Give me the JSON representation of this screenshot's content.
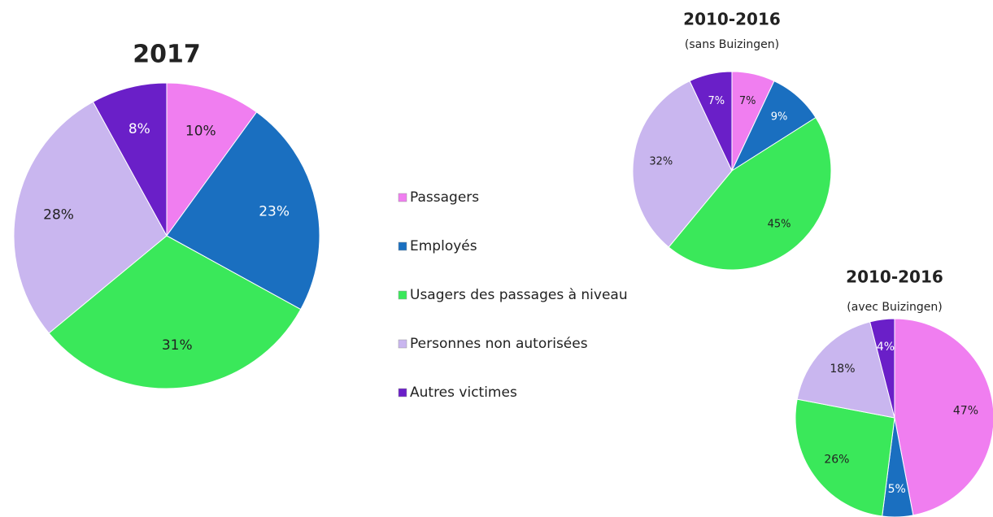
{
  "chart_data": [
    {
      "type": "pie",
      "title": "2017",
      "categories": [
        "Passagers",
        "Employés",
        "Usagers des passages à niveau",
        "Personnes non autorisées",
        "Autres victimes"
      ],
      "colors": [
        "#f07ef0",
        "#1a6fc0",
        "#3ae85a",
        "#c9b6ef",
        "#6a1fc8"
      ],
      "values": [
        10,
        23,
        31,
        28,
        8
      ],
      "value_labels": [
        "10%",
        "23%",
        "31%",
        "28%",
        "8%"
      ]
    },
    {
      "type": "pie",
      "title": "2010-2016",
      "subtitle": "(sans Buizingen)",
      "values": [
        7,
        9,
        45,
        32,
        7
      ],
      "value_labels": [
        "7%",
        "9%",
        "45%",
        "32%",
        "7%"
      ]
    },
    {
      "type": "pie",
      "title": "2010-2016",
      "subtitle": "(avec Buizingen)",
      "values": [
        47,
        5,
        26,
        18,
        4
      ],
      "value_labels": [
        "47%",
        "5%",
        "26%",
        "18%",
        "4%"
      ]
    }
  ]
}
